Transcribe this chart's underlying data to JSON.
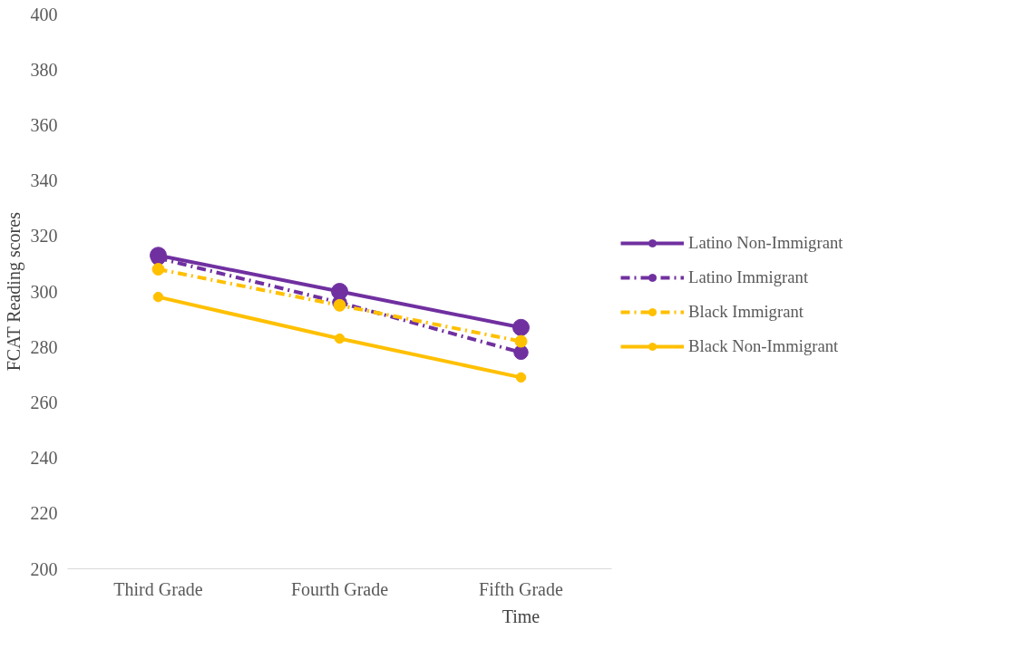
{
  "chart_data": {
    "type": "line",
    "xlabel": "Time",
    "ylabel": "FCAT Reading scores",
    "categories": [
      "Third Grade",
      "Fourth Grade",
      "Fifth Grade"
    ],
    "series": [
      {
        "name": "Latino Non-Immigrant",
        "color": "#7030a0",
        "values": [
          313,
          300,
          287
        ],
        "line_style": "solid"
      },
      {
        "name": "Latino Immigrant",
        "color": "#7030a0",
        "values": [
          312,
          296,
          278
        ],
        "line_style": "dashed"
      },
      {
        "name": "Black Immigrant",
        "color": "#ffc000",
        "values": [
          308,
          295,
          282
        ],
        "line_style": "dashed"
      },
      {
        "name": "Black Non-Immigrant",
        "color": "#ffc000",
        "values": [
          298,
          283,
          269
        ],
        "line_style": "solid"
      }
    ],
    "ylim": [
      200,
      400
    ],
    "yticks": [
      200,
      220,
      240,
      260,
      280,
      300,
      320,
      340,
      360,
      380,
      400
    ],
    "grid": false,
    "legend": "right",
    "marker": "circle"
  }
}
